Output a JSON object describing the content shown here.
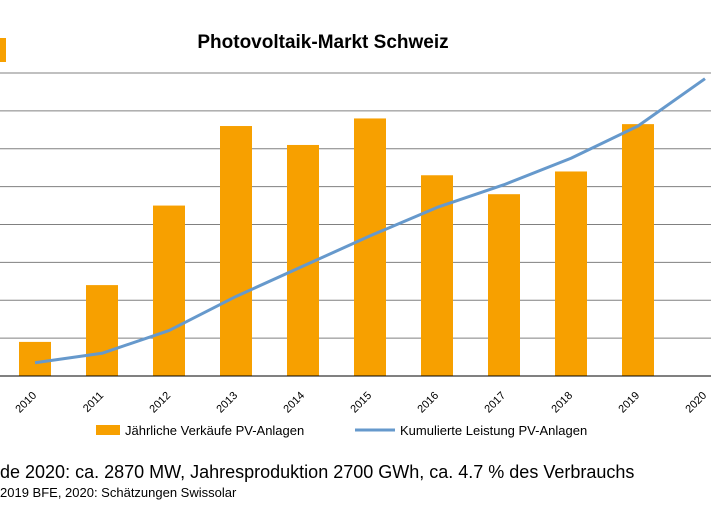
{
  "chart_data": {
    "type": "bar",
    "title": "Photovoltaik-Markt Schweiz",
    "categories": [
      "2010",
      "2011",
      "2012",
      "2013",
      "2014",
      "2015",
      "2016",
      "2017",
      "2018",
      "2019",
      "2020"
    ],
    "series": [
      {
        "name": "Jährliche Verkäufe PV-Anlagen",
        "type": "bar",
        "color": "#f7a000",
        "values": [
          0.9,
          2.4,
          4.5,
          6.6,
          6.1,
          6.8,
          5.3,
          4.8,
          5.4,
          6.65,
          null
        ]
      },
      {
        "name": "Kumulierte Leistung PV-Anlagen",
        "type": "line",
        "color": "#6699cc",
        "values": [
          0.35,
          0.6,
          1.2,
          2.1,
          2.9,
          3.7,
          4.45,
          5.05,
          5.75,
          6.6,
          7.85
        ]
      }
    ],
    "ylim": [
      0,
      8
    ],
    "grid": true,
    "legend": "bottom"
  },
  "footnote": {
    "main": "de 2020: ca. 2870 MW, Jahresproduktion 2700 GWh, ca. 4.7 % des Verbrauchs",
    "source": "2019 BFE, 2020: Schätzungen Swissolar"
  },
  "colors": {
    "bar": "#f7a000",
    "line": "#6699cc",
    "grid": "#808080"
  }
}
